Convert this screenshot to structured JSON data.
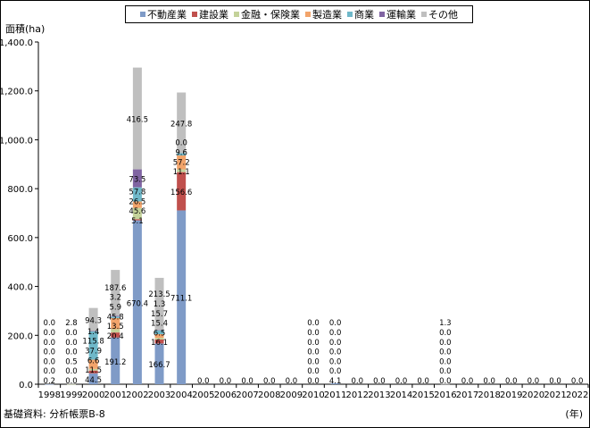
{
  "chart_data": {
    "type": "bar",
    "stacked": true,
    "ylabel": "面積(ha)",
    "xunit": "(年)",
    "source": "基礎資料: 分析帳票B-8",
    "ylim": [
      0,
      1400
    ],
    "yticks": [
      "0.0",
      "200.0",
      "400.0",
      "600.0",
      "800.0",
      "1,000.0",
      "1,200.0",
      "1,400.0"
    ],
    "ytick_values": [
      0,
      200,
      400,
      600,
      800,
      1000,
      1200,
      1400
    ],
    "legend_position": "top",
    "categories": [
      "1998",
      "1999",
      "2000",
      "2001",
      "2002",
      "2003",
      "2004",
      "2005",
      "2006",
      "2007",
      "2008",
      "2009",
      "2010",
      "2011",
      "2012",
      "2013",
      "2014",
      "2015",
      "2016",
      "2017",
      "2018",
      "2019",
      "2020",
      "2021",
      "2022"
    ],
    "series": [
      {
        "name": "不動産業",
        "color": "#7f9bc7",
        "values": [
          0.2,
          0.0,
          44.5,
          191.2,
          670.4,
          166.7,
          711.1,
          0,
          0,
          0,
          0,
          0,
          0.0,
          4.1,
          0,
          0,
          0,
          0,
          0.0,
          0,
          0,
          0,
          0,
          0,
          0
        ],
        "labels": [
          "0.2",
          "0.0",
          "44.5",
          "191.2",
          "670.4",
          "166.7",
          "711.1",
          "0.0",
          "0.0",
          "0.0",
          "0.0",
          "0.0",
          "0.0",
          "4.1",
          "0.0",
          "0.0",
          "0.0",
          "0.0",
          "0.0",
          "0.0",
          "0.0",
          "0.0",
          "0.0",
          "0.0",
          "0.0"
        ]
      },
      {
        "name": "建設業",
        "color": "#c0504d",
        "values": [
          0.0,
          0.0,
          11.5,
          20.4,
          5.1,
          16.1,
          156.6,
          0,
          0,
          0,
          0,
          0,
          0.0,
          0.0,
          0,
          0,
          0,
          0,
          0.0,
          0,
          0,
          0,
          0,
          0,
          0
        ],
        "labels": [
          "0.0",
          "0.0",
          "11.5",
          "20.4",
          "5.1",
          "16.1",
          "156.6",
          "",
          "",
          "",
          "",
          "",
          "0.0",
          "0.0",
          "",
          "",
          "",
          "",
          "0.0",
          "",
          "",
          "",
          "",
          "",
          ""
        ]
      },
      {
        "name": "金融・保険業",
        "color": "#c4d29a",
        "values": [
          0.0,
          0.5,
          6.6,
          13.5,
          45.6,
          6.5,
          11.1,
          0,
          0,
          0,
          0,
          0,
          0.0,
          0.0,
          0,
          0,
          0,
          0,
          0.0,
          0,
          0,
          0,
          0,
          0,
          0
        ],
        "labels": [
          "0.0",
          "0.5",
          "6.6",
          "13.5",
          "45.6",
          "6.5",
          "11.1",
          "",
          "",
          "",
          "",
          "",
          "0.0",
          "0.0",
          "",
          "",
          "",
          "",
          "0.0",
          "",
          "",
          "",
          "",
          "",
          ""
        ]
      },
      {
        "name": "製造業",
        "color": "#f2a46b",
        "values": [
          0.0,
          0.0,
          37.9,
          45.8,
          26.5,
          15.4,
          57.2,
          0,
          0,
          0,
          0,
          0,
          0.0,
          0.0,
          0,
          0,
          0,
          0,
          0.0,
          0,
          0,
          0,
          0,
          0,
          0
        ],
        "labels": [
          "0.0",
          "0.0",
          "37.9",
          "45.8",
          "26.5",
          "15.4",
          "57.2",
          "",
          "",
          "",
          "",
          "",
          "0.0",
          "0.0",
          "",
          "",
          "",
          "",
          "0.0",
          "",
          "",
          "",
          "",
          "",
          ""
        ]
      },
      {
        "name": "商業",
        "color": "#6fb8c9",
        "values": [
          0.0,
          0.0,
          115.8,
          5.9,
          57.8,
          15.7,
          9.6,
          0,
          0,
          0,
          0,
          0,
          0.0,
          0.0,
          0,
          0,
          0,
          0,
          0.0,
          0,
          0,
          0,
          0,
          0,
          0
        ],
        "labels": [
          "0.0",
          "0.0",
          "115.8",
          "5.9",
          "57.8",
          "15.7",
          "9.6",
          "",
          "",
          "",
          "",
          "",
          "0.0",
          "0.0",
          "",
          "",
          "",
          "",
          "0.0",
          "",
          "",
          "",
          "",
          "",
          ""
        ]
      },
      {
        "name": "運輸業",
        "color": "#8064a2",
        "values": [
          0.0,
          0.0,
          1.4,
          3.2,
          73.5,
          1.3,
          0.0,
          0,
          0,
          0,
          0,
          0,
          0.0,
          0.0,
          0,
          0,
          0,
          0,
          0.0,
          0,
          0,
          0,
          0,
          0,
          0
        ],
        "labels": [
          "0.0",
          "0.0",
          "1.4",
          "3.2",
          "73.5",
          "1.3",
          "0.0",
          "",
          "",
          "",
          "",
          "",
          "0.0",
          "0.0",
          "",
          "",
          "",
          "",
          "0.0",
          "",
          "",
          "",
          "",
          "",
          ""
        ]
      },
      {
        "name": "その他",
        "color": "#bfbfbf",
        "values": [
          0.0,
          2.8,
          94.3,
          187.6,
          416.5,
          213.5,
          247.8,
          0,
          0,
          0,
          0,
          0,
          0.0,
          0.0,
          0,
          0,
          0,
          0,
          1.3,
          0,
          0,
          0,
          0,
          0,
          0
        ],
        "labels": [
          "0.0",
          "2.8",
          "94.3",
          "187.6",
          "416.5",
          "213.5",
          "247.8",
          "",
          "",
          "",
          "",
          "",
          "0.0",
          "0.0",
          "",
          "",
          "",
          "",
          "1.3",
          "",
          "",
          "",
          "",
          "",
          ""
        ]
      }
    ]
  }
}
